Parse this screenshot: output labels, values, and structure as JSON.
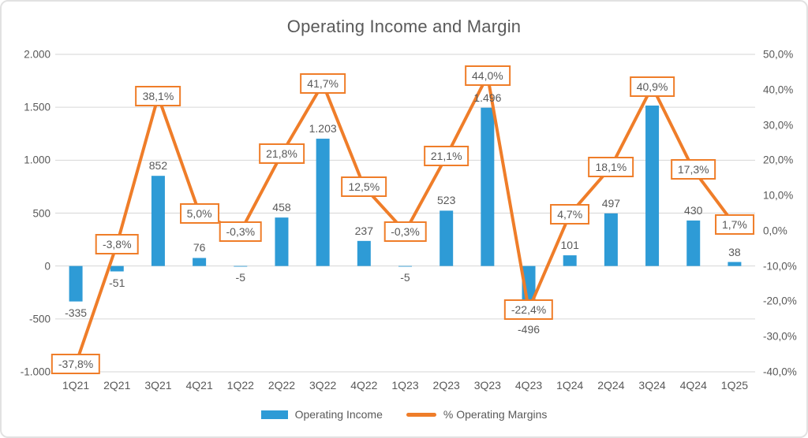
{
  "chart_data": {
    "type": "combo",
    "title": "Operating Income and Margin",
    "categories": [
      "1Q21",
      "2Q21",
      "3Q21",
      "4Q21",
      "1Q22",
      "2Q22",
      "3Q22",
      "4Q22",
      "1Q23",
      "2Q23",
      "3Q23",
      "4Q23",
      "1Q24",
      "2Q24",
      "3Q24",
      "4Q24",
      "1Q25"
    ],
    "series": [
      {
        "name": "Operating Income",
        "chart_type": "bar",
        "axis": "left",
        "color": "#2E9BD6",
        "values": [
          -335,
          -51,
          852,
          76,
          -5,
          458,
          1203,
          237,
          -5,
          523,
          1496,
          -496,
          101,
          497,
          1516,
          430,
          38
        ],
        "value_labels": [
          "-335",
          "-51",
          "852",
          "76",
          "-5",
          "458",
          "1.203",
          "237",
          "-5",
          "523",
          "1.496",
          "-496",
          "101",
          "497",
          "",
          "430",
          "38"
        ]
      },
      {
        "name": "% Operating Margins",
        "chart_type": "line",
        "axis": "right",
        "color": "#EF7D29",
        "values": [
          -37.8,
          -3.8,
          38.1,
          5.0,
          -0.3,
          21.8,
          41.7,
          12.5,
          -0.3,
          21.1,
          44.0,
          -22.4,
          4.7,
          18.1,
          40.9,
          17.3,
          1.7
        ],
        "value_labels": [
          "-37,8%",
          "-3,8%",
          "38,1%",
          "5,0%",
          "-0,3%",
          "21,8%",
          "41,7%",
          "12,5%",
          "-0,3%",
          "21,1%",
          "44,0%",
          "-22,4%",
          "4,7%",
          "18,1%",
          "40,9%",
          "17,3%",
          "1,7%"
        ]
      }
    ],
    "left_axis": {
      "min": -1000,
      "max": 2000,
      "tick_labels": [
        "2.000",
        "1.500",
        "1.000",
        "500",
        "0",
        "-500",
        "-1.000"
      ]
    },
    "right_axis": {
      "min": -40,
      "max": 50,
      "tick_labels": [
        "50,0%",
        "40,0%",
        "30,0%",
        "20,0%",
        "10,0%",
        "0,0%",
        "-10,0%",
        "-20,0%",
        "-30,0%",
        "-40,0%"
      ]
    },
    "grid": true,
    "legend_position": "bottom",
    "style": {
      "text_color": "#595959",
      "grid_color": "#D6D6D6",
      "label_box_bg": "#FFFFFF"
    }
  }
}
